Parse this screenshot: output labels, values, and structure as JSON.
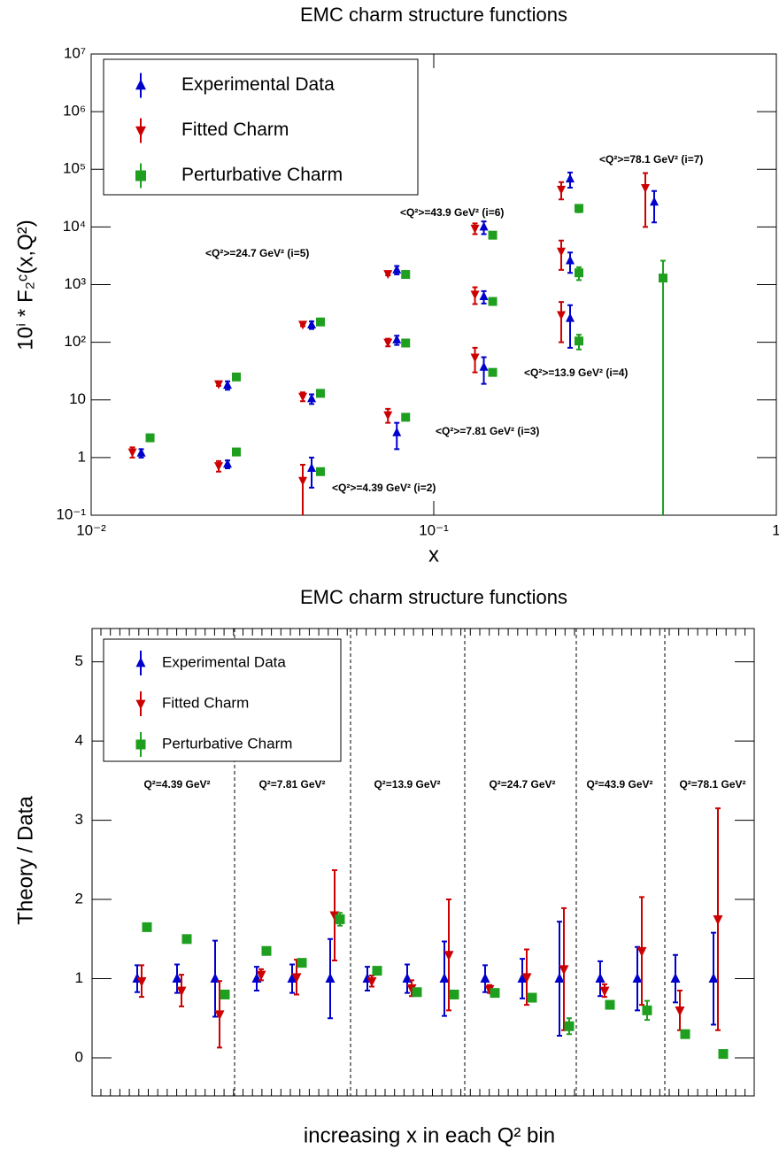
{
  "chart_data": [
    {
      "type": "scatter",
      "title": "EMC charm structure functions",
      "xlabel": "x",
      "ylabel": "10ⁱ * F₂ᶜ(x,Q²)",
      "xlog": true,
      "ylog": true,
      "xlim": [
        0.01,
        1
      ],
      "ylim": [
        0.1,
        10000000
      ],
      "xticks": [
        {
          "value": 0.01,
          "label": "10⁻²"
        },
        {
          "value": 0.1,
          "label": "10⁻¹"
        },
        {
          "value": 1,
          "label": "1"
        }
      ],
      "yticks": [
        {
          "value": 0.1,
          "label": "10⁻¹"
        },
        1,
        10,
        {
          "value": 100,
          "label": "10²"
        },
        {
          "value": 1000,
          "label": "10³"
        },
        {
          "value": 10000,
          "label": "10⁴"
        },
        {
          "value": 100000,
          "label": "10⁵"
        },
        {
          "value": 1000000,
          "label": "10⁶"
        },
        {
          "value": 10000000,
          "label": "10⁷"
        }
      ],
      "legend": "top-left",
      "x": [
        0.014,
        0.025,
        0.044,
        0.025,
        0.044,
        0.078,
        0.044,
        0.078,
        0.14,
        0.078,
        0.14,
        0.25,
        0.14,
        0.25,
        0.25,
        0.44
      ],
      "series": [
        {
          "name": "Experimental Data",
          "color": "#0000cc",
          "marker": "triangle-up",
          "values": [
            1.2,
            0.77,
            0.65,
            18,
            10.5,
            2.7,
            200,
            110,
            37,
            1800,
            620,
            260,
            10000,
            2600,
            68000,
            27000
          ],
          "errors": [
            0.2,
            0.12,
            0.35,
            3,
            2,
            1.3,
            30,
            20,
            18,
            300,
            150,
            180,
            2500,
            1000,
            20000,
            15000
          ]
        },
        {
          "name": "Fitted Charm",
          "color": "#cc0000",
          "marker": "triangle-down",
          "values": [
            1.25,
            0.72,
            0.4,
            19,
            11.5,
            5.5,
            205,
            100,
            55,
            1550,
            680,
            300,
            9500,
            3800,
            45000,
            48000
          ],
          "errors": [
            0.25,
            0.15,
            0.35,
            1.5,
            2,
            1.5,
            15,
            15,
            25,
            100,
            220,
            200,
            2000,
            2000,
            15000,
            38000
          ]
        },
        {
          "name": "Perturbative Charm",
          "color": "#1f9f1f",
          "marker": "square",
          "values": [
            2.2,
            1.25,
            0.57,
            25,
            13,
            5,
            225,
            97,
            30,
            1500,
            510,
            105,
            7200,
            1600,
            21000,
            1300
          ],
          "errors": [
            0.05,
            0.05,
            0.05,
            1,
            1,
            0.3,
            10,
            5,
            3,
            80,
            30,
            30,
            300,
            400,
            3000,
            1300
          ]
        }
      ],
      "annotations": [
        "<Q²>=4.39 GeV² (i=2)",
        "<Q²>=7.81 GeV² (i=3)",
        "<Q²>=13.9 GeV² (i=4)",
        "<Q²>=24.7 GeV² (i=5)",
        "<Q²>=43.9 GeV² (i=6)",
        "<Q²>=78.1 GeV² (i=7)"
      ]
    },
    {
      "type": "scatter",
      "title": "EMC charm structure functions",
      "xlabel": "increasing x in each Q² bin",
      "ylabel": "Theory / Data",
      "ylim": [
        -0.48,
        5.42
      ],
      "yticks": [
        0,
        1,
        2,
        3,
        4,
        5
      ],
      "legend": "top-left",
      "categories": [
        null,
        null,
        null,
        null,
        null,
        null,
        null,
        null,
        null,
        null,
        null,
        null,
        null,
        null,
        null,
        null
      ],
      "bins": [
        "Q²=4.39 GeV²",
        "Q²=7.81 GeV²",
        "Q²=13.9 GeV²",
        "Q²=24.7 GeV²",
        "Q²=43.9 GeV²",
        "Q²=78.1 GeV²"
      ],
      "series": [
        {
          "name": "Experimental Data",
          "color": "#0000cc",
          "marker": "triangle-up",
          "values": [
            1,
            1,
            1,
            1,
            1,
            1,
            1,
            1,
            1,
            1,
            1,
            1,
            1,
            1,
            1,
            1
          ],
          "errors": [
            0.17,
            0.18,
            0.48,
            0.15,
            0.18,
            0.5,
            0.15,
            0.18,
            0.47,
            0.17,
            0.25,
            0.72,
            0.22,
            0.4,
            0.3,
            0.58
          ]
        },
        {
          "name": "Fitted Charm",
          "color": "#cc0000",
          "marker": "triangle-down",
          "values": [
            0.97,
            0.85,
            0.55,
            1.05,
            1.02,
            1.8,
            0.97,
            0.88,
            1.3,
            0.87,
            1.02,
            1.12,
            0.85,
            1.35,
            0.6,
            1.75
          ],
          "errors": [
            0.2,
            0.2,
            0.42,
            0.07,
            0.22,
            0.57,
            0.07,
            0.1,
            0.7,
            0.05,
            0.35,
            0.77,
            0.08,
            0.68,
            0.25,
            1.4
          ]
        },
        {
          "name": "Perturbative Charm",
          "color": "#1f9f1f",
          "marker": "square",
          "values": [
            1.65,
            1.5,
            0.8,
            1.35,
            1.2,
            1.75,
            1.1,
            0.83,
            0.8,
            0.82,
            0.76,
            0.4,
            0.67,
            0.6,
            0.3,
            0.05
          ],
          "errors": [
            0.02,
            0.02,
            0.03,
            0.02,
            0.03,
            0.08,
            0.03,
            0.04,
            0.05,
            0.03,
            0.04,
            0.1,
            0.03,
            0.12,
            0.03,
            0.02
          ]
        }
      ]
    }
  ]
}
